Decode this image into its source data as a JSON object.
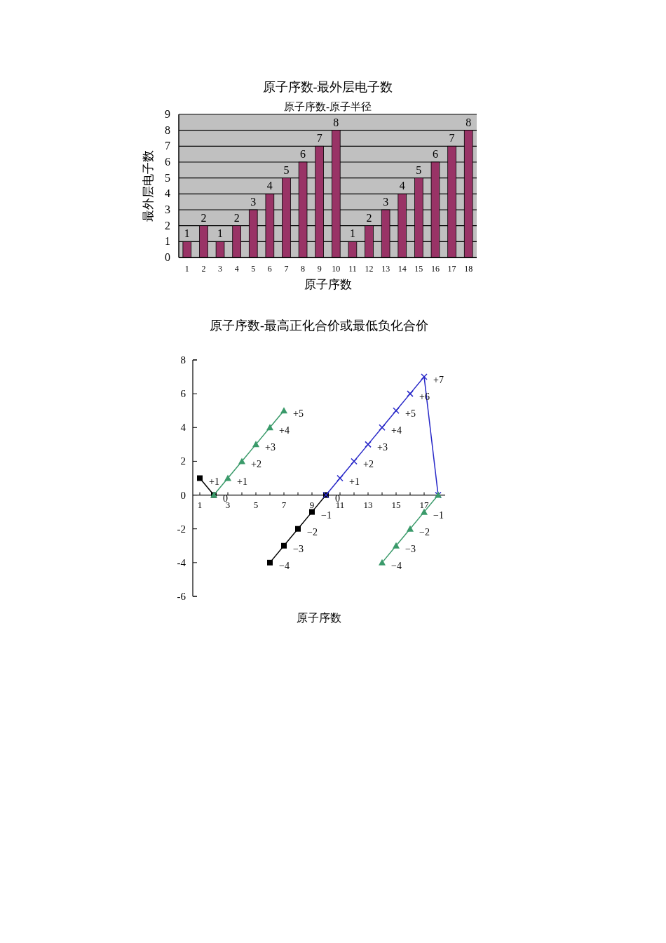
{
  "chart_data": [
    {
      "type": "bar",
      "title": "原子序数-最外层电子数",
      "subtitle": "原子序数-原子半径",
      "xlabel": "原子序数",
      "ylabel": "最外层电子数",
      "categories": [
        "1",
        "2",
        "3",
        "4",
        "5",
        "6",
        "7",
        "8",
        "9",
        "10",
        "11",
        "12",
        "13",
        "14",
        "15",
        "16",
        "17",
        "18"
      ],
      "values": [
        1,
        2,
        1,
        2,
        3,
        4,
        5,
        6,
        7,
        8,
        1,
        2,
        3,
        4,
        5,
        6,
        7,
        8
      ],
      "color": "#993366",
      "ylim": [
        0,
        9
      ],
      "yticks": [
        0,
        1,
        2,
        3,
        4,
        5,
        6,
        7,
        8,
        9
      ],
      "grid": "y",
      "data_labels": true
    },
    {
      "type": "line",
      "title": "原子序数-最高正化合价或最低负化合价",
      "xlabel": "原子序数",
      "xlim": [
        0.5,
        18.5
      ],
      "xticks": [
        1,
        {
          "value": 2,
          "label": null
        },
        3,
        {
          "value": 4,
          "label": null
        },
        5,
        {
          "value": 6,
          "label": null
        },
        7,
        {
          "value": 8,
          "label": null
        },
        9,
        {
          "value": 10,
          "label": null
        },
        11,
        {
          "value": 12,
          "label": null
        },
        13,
        {
          "value": 14,
          "label": null
        },
        15,
        {
          "value": 16,
          "label": null
        },
        17,
        {
          "value": 18,
          "label": null
        }
      ],
      "ylim": [
        -6,
        8
      ],
      "yticks": [
        -6,
        -4,
        -2,
        0,
        2,
        4,
        6,
        8
      ],
      "series": [
        {
          "color": "#000000",
          "marker": "square",
          "x": [
            1,
            2
          ],
          "values": [
            1,
            0
          ],
          "value_labels": [
            "+1",
            "0"
          ]
        },
        {
          "color": "#3a9a6a",
          "marker": "triangle",
          "x": [
            2,
            3,
            4,
            5,
            6,
            7
          ],
          "values": [
            0,
            1,
            2,
            3,
            4,
            5
          ],
          "value_labels": [
            null,
            "+1",
            "+2",
            "+3",
            "+4",
            "+5"
          ]
        },
        {
          "color": "#000000",
          "marker": "square",
          "x": [
            6,
            7,
            8,
            9,
            10
          ],
          "values": [
            -4,
            -3,
            -2,
            -1,
            0
          ],
          "value_labels": [
            "−4",
            "−3",
            "−2",
            "−1",
            "0"
          ]
        },
        {
          "color": "#2828c8",
          "marker": "cross",
          "x": [
            10,
            11,
            12,
            13,
            14,
            15,
            16,
            17,
            18
          ],
          "values": [
            0,
            1,
            2,
            3,
            4,
            5,
            6,
            7,
            0
          ],
          "value_labels": [
            null,
            "+1",
            "+2",
            "+3",
            "+4",
            "+5",
            "+6",
            "+7",
            null
          ]
        },
        {
          "color": "#3a9a6a",
          "marker": "triangle",
          "x": [
            14,
            15,
            16,
            17,
            18
          ],
          "values": [
            -4,
            -3,
            -2,
            -1,
            0
          ],
          "value_labels": [
            "−4",
            "−3",
            "−2",
            "−1",
            null
          ]
        }
      ]
    }
  ]
}
